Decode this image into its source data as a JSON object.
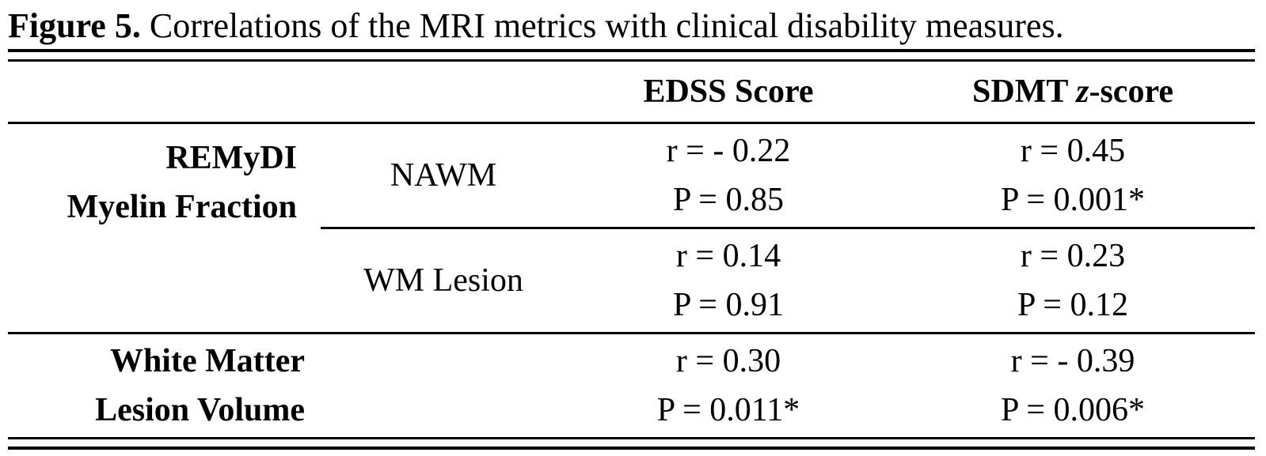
{
  "caption": {
    "label": "Figure 5.",
    "text": " Correlations of the MRI metrics with clinical disability measures."
  },
  "table": {
    "headers": {
      "edss": "EDSS Score",
      "sdmt_pre": "SDMT ",
      "sdmt_italic": "z",
      "sdmt_post": "-score"
    },
    "groups": [
      {
        "label_line1": "REMyDI",
        "label_line2": "Myelin Fraction",
        "rows": [
          {
            "region": "NAWM",
            "edss_r": "r = - 0.22",
            "edss_p": "P = 0.85",
            "sdmt_r": "r = 0.45",
            "sdmt_p": "P = 0.001*"
          },
          {
            "region": "WM Lesion",
            "edss_r": "r = 0.14",
            "edss_p": "P = 0.91",
            "sdmt_r": "r = 0.23",
            "sdmt_p": "P = 0.12"
          }
        ]
      },
      {
        "label_line1": "White Matter",
        "label_line2": "Lesion Volume",
        "rows": [
          {
            "region": "",
            "edss_r": "r = 0.30",
            "edss_p": "P = 0.011*",
            "sdmt_r": "r = - 0.39",
            "sdmt_p": "P = 0.006*"
          }
        ]
      }
    ]
  }
}
